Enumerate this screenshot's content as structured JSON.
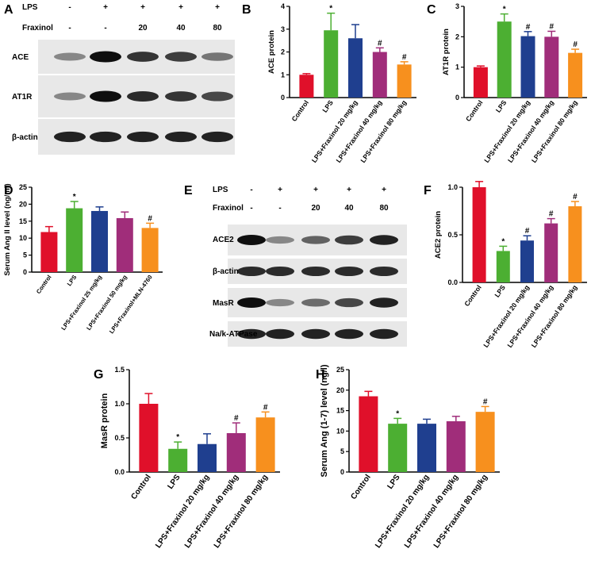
{
  "colors": [
    "#e0102a",
    "#4caf32",
    "#1f3f8f",
    "#a02d7a",
    "#f7901e"
  ],
  "blot_a": {
    "letter": "A",
    "treatments": [
      {
        "label": "LPS",
        "values": [
          "-",
          "+",
          "+",
          "+",
          "+"
        ]
      },
      {
        "label": "Fraxinol",
        "values": [
          "-",
          "-",
          "20",
          "40",
          "80"
        ]
      }
    ],
    "rows": [
      {
        "label": "ACE",
        "intensity": [
          0.35,
          1.0,
          0.8,
          0.75,
          0.45
        ]
      },
      {
        "label": "AT1R",
        "intensity": [
          0.35,
          1.0,
          0.85,
          0.8,
          0.7
        ]
      },
      {
        "label": "β-actin",
        "intensity": [
          0.9,
          0.9,
          0.9,
          0.9,
          0.9
        ]
      }
    ]
  },
  "blot_e": {
    "letter": "E",
    "treatments": [
      {
        "label": "LPS",
        "values": [
          "-",
          "+",
          "+",
          "+",
          "+"
        ]
      },
      {
        "label": "Fraxinol",
        "values": [
          "-",
          "-",
          "20",
          "40",
          "80"
        ]
      }
    ],
    "rows": [
      {
        "label": "ACE2",
        "intensity": [
          1.0,
          0.35,
          0.55,
          0.75,
          0.9
        ]
      },
      {
        "label": "β-actin",
        "intensity": [
          0.85,
          0.85,
          0.85,
          0.85,
          0.85
        ]
      },
      {
        "label": "MasR",
        "intensity": [
          1.0,
          0.35,
          0.5,
          0.7,
          0.9
        ]
      },
      {
        "label": "Na/k-ATPase",
        "intensity": [
          0.9,
          0.9,
          0.9,
          0.9,
          0.9
        ]
      }
    ]
  },
  "chart_data": [
    {
      "panel": "B",
      "type": "bar",
      "ylabel": "ACE protein",
      "ylim": [
        0,
        4
      ],
      "yticks": [
        0,
        1,
        2,
        3,
        4
      ],
      "categories": [
        "Control",
        "LPS",
        "LPS+Fraxinol 20 mg/kg",
        "LPS+Fraxinol 40 mg/kg",
        "LPS+Fraxinol 80 mg/kg"
      ],
      "values": [
        1.0,
        2.95,
        2.6,
        2.0,
        1.45
      ],
      "errors": [
        0.05,
        0.75,
        0.6,
        0.18,
        0.12
      ],
      "annotations": [
        "",
        "*",
        "",
        "#",
        "#"
      ]
    },
    {
      "panel": "C",
      "type": "bar",
      "ylabel": "AT1R protein",
      "ylim": [
        0,
        3
      ],
      "yticks": [
        0,
        1,
        2,
        3
      ],
      "categories": [
        "Control",
        "LPS",
        "LPS+Fraxinol 20 mg/kg",
        "LPS+Fraxinol 40 mg/kg",
        "LPS+Fraxinol 80 mg/kg"
      ],
      "values": [
        1.0,
        2.5,
        2.02,
        2.0,
        1.47
      ],
      "errors": [
        0.04,
        0.25,
        0.15,
        0.18,
        0.12
      ],
      "annotations": [
        "",
        "*",
        "#",
        "#",
        "#"
      ]
    },
    {
      "panel": "D",
      "type": "bar",
      "ylabel": "Serum Ang II level (ng/ml)",
      "ylim": [
        0,
        25
      ],
      "yticks": [
        0,
        5,
        10,
        15,
        20,
        25
      ],
      "categories": [
        "Control",
        "LPS",
        "LPS+Fraxinol 25 mg/kg",
        "LPS+Fraxinol 50 mg/kg",
        "LPS+Fraxinol+MLN-4760"
      ],
      "values": [
        11.8,
        18.8,
        18.0,
        15.9,
        13.0
      ],
      "errors": [
        1.6,
        2.0,
        1.2,
        1.8,
        1.4
      ],
      "annotations": [
        "",
        "*",
        "",
        "",
        "#"
      ]
    },
    {
      "panel": "F",
      "type": "bar",
      "ylabel": "ACE2 protein",
      "ylim": [
        0,
        1.0
      ],
      "yticks": [
        0.0,
        0.5,
        1.0
      ],
      "ytick_labels": [
        "0.0",
        "0.5",
        "1.0"
      ],
      "categories": [
        "Control",
        "LPS",
        "LPS+Fraxinol 20 mg/kg",
        "LPS+Fraxinol 40 mg/kg",
        "LPS+Fraxinol 80 mg/kg"
      ],
      "values": [
        1.0,
        0.33,
        0.44,
        0.62,
        0.8
      ],
      "errors": [
        0.06,
        0.05,
        0.05,
        0.05,
        0.05
      ],
      "annotations": [
        "",
        "*",
        "#",
        "#",
        "#"
      ]
    },
    {
      "panel": "G",
      "type": "bar",
      "ylabel": "MasR protein",
      "ylim": [
        0,
        1.5
      ],
      "yticks": [
        0.0,
        0.5,
        1.0,
        1.5
      ],
      "ytick_labels": [
        "0.0",
        "0.5",
        "1.0",
        "1.5"
      ],
      "categories": [
        "Control",
        "LPS",
        "LPS+Fraxinol 20 mg/kg",
        "LPS+Fraxinol 40 mg/kg",
        "LPS+Fraxinol 80 mg/kg"
      ],
      "values": [
        1.0,
        0.34,
        0.41,
        0.57,
        0.8
      ],
      "errors": [
        0.15,
        0.1,
        0.15,
        0.15,
        0.08
      ],
      "annotations": [
        "",
        "*",
        "",
        "#",
        "#"
      ]
    },
    {
      "panel": "H",
      "type": "bar",
      "ylabel": "Serum Ang (1-7) level (ng/l)",
      "ylim": [
        0,
        25
      ],
      "yticks": [
        0,
        5,
        10,
        15,
        20,
        25
      ],
      "categories": [
        "Control",
        "LPS",
        "LPS+Fraxinol 20 mg/kg",
        "LPS+Fraxinol 40 mg/kg",
        "LPS+Fraxinol 80 mg/kg"
      ],
      "values": [
        18.5,
        11.8,
        11.8,
        12.4,
        14.7
      ],
      "errors": [
        1.2,
        1.3,
        1.1,
        1.2,
        1.3
      ],
      "annotations": [
        "",
        "*",
        "",
        "",
        "#"
      ]
    }
  ]
}
